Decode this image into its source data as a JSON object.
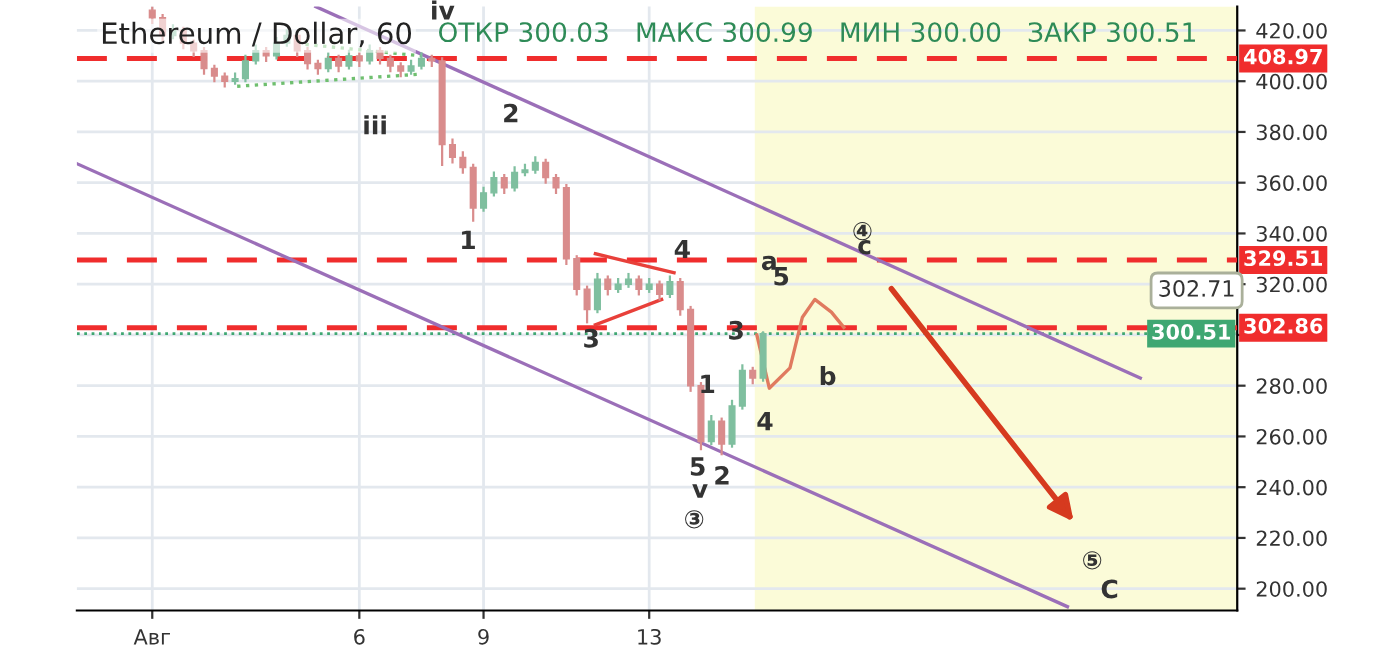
{
  "chart_data": {
    "type": "candlestick",
    "title": "Ethereum / Dollar, 60",
    "x": [
      1.0,
      1.25,
      1.5,
      1.75,
      2.0,
      2.25,
      2.5,
      2.75,
      3.0,
      3.25,
      3.5,
      3.75,
      4.0,
      4.25,
      4.5,
      4.75,
      5.0,
      5.25,
      5.5,
      5.75,
      6.0,
      6.25,
      6.5,
      6.75,
      7.0,
      7.25,
      7.5,
      7.75,
      8.0,
      8.25,
      8.5,
      8.75,
      9.0,
      9.25,
      9.5,
      9.75,
      10.0,
      10.25,
      10.5,
      10.75,
      11.0,
      11.25,
      11.5,
      11.75,
      12.0,
      12.25,
      12.5,
      12.75,
      13.0,
      13.25,
      13.5,
      13.75,
      14.0,
      14.25,
      14.5,
      14.75,
      15.0,
      15.25,
      15.5,
      15.75
    ],
    "ohlc": [
      [
        428,
        429,
        423,
        425
      ],
      [
        425,
        426,
        416,
        418
      ],
      [
        418,
        422,
        417,
        420
      ],
      [
        420,
        421,
        413,
        415
      ],
      [
        415,
        416,
        410,
        412
      ],
      [
        412,
        413,
        403,
        405
      ],
      [
        405,
        406,
        400,
        402
      ],
      [
        402,
        403,
        398,
        400
      ],
      [
        400,
        403,
        399,
        401
      ],
      [
        401,
        410,
        400,
        408
      ],
      [
        408,
        414,
        407,
        412
      ],
      [
        412,
        413,
        408,
        410
      ],
      [
        410,
        417,
        409,
        415
      ],
      [
        415,
        420,
        414,
        418
      ],
      [
        418,
        419,
        410,
        412
      ],
      [
        412,
        413,
        405,
        407
      ],
      [
        407,
        408,
        403,
        405
      ],
      [
        405,
        411,
        404,
        409
      ],
      [
        409,
        410,
        404,
        406
      ],
      [
        406,
        412,
        405,
        410
      ],
      [
        410,
        411,
        406,
        408
      ],
      [
        408,
        414,
        407,
        412
      ],
      [
        412,
        413,
        407,
        409
      ],
      [
        409,
        410,
        404,
        406
      ],
      [
        406,
        407,
        402,
        404
      ],
      [
        404,
        408,
        403,
        406
      ],
      [
        406,
        411,
        405,
        409
      ],
      [
        409,
        410,
        406,
        408
      ],
      [
        408,
        409,
        367,
        375
      ],
      [
        375,
        377,
        368,
        370
      ],
      [
        370,
        372,
        364,
        366
      ],
      [
        366,
        367,
        345,
        350
      ],
      [
        350,
        358,
        349,
        356
      ],
      [
        356,
        364,
        355,
        362
      ],
      [
        362,
        363,
        356,
        358
      ],
      [
        358,
        366,
        357,
        364
      ],
      [
        364,
        367,
        363,
        365
      ],
      [
        365,
        370,
        364,
        368
      ],
      [
        368,
        369,
        360,
        362
      ],
      [
        362,
        363,
        356,
        358
      ],
      [
        358,
        359,
        328,
        330
      ],
      [
        330,
        331,
        316,
        318
      ],
      [
        318,
        319,
        305,
        310
      ],
      [
        310,
        324,
        309,
        322
      ],
      [
        322,
        323,
        316,
        318
      ],
      [
        318,
        322,
        317,
        320
      ],
      [
        320,
        324,
        319,
        322
      ],
      [
        322,
        323,
        316,
        318
      ],
      [
        318,
        322,
        317,
        320
      ],
      [
        320,
        321,
        314,
        316
      ],
      [
        316,
        323,
        315,
        321
      ],
      [
        321,
        322,
        308,
        310
      ],
      [
        310,
        311,
        278,
        280
      ],
      [
        280,
        281,
        255,
        258
      ],
      [
        258,
        268,
        257,
        266
      ],
      [
        266,
        267,
        253,
        257
      ],
      [
        257,
        274,
        256,
        272
      ],
      [
        272,
        288,
        271,
        286
      ],
      [
        286,
        287,
        281,
        283
      ],
      [
        283,
        301,
        282,
        300.51
      ]
    ],
    "colors": [
      "#d98c8c",
      "#d98c8c",
      "#7fbf9f",
      "#d98c8c",
      "#d98c8c",
      "#d98c8c",
      "#d98c8c",
      "#d98c8c",
      "#7fbf9f",
      "#7fbf9f",
      "#7fbf9f",
      "#d98c8c",
      "#7fbf9f",
      "#7fbf9f",
      "#d98c8c",
      "#d98c8c",
      "#d98c8c",
      "#7fbf9f",
      "#d98c8c",
      "#7fbf9f",
      "#d98c8c",
      "#7fbf9f",
      "#d98c8c",
      "#d98c8c",
      "#d98c8c",
      "#7fbf9f",
      "#7fbf9f",
      "#d98c8c",
      "#d98c8c",
      "#d98c8c",
      "#d98c8c",
      "#d98c8c",
      "#7fbf9f",
      "#7fbf9f",
      "#d98c8c",
      "#7fbf9f",
      "#7fbf9f",
      "#7fbf9f",
      "#d98c8c",
      "#d98c8c",
      "#d98c8c",
      "#d98c8c",
      "#d98c8c",
      "#7fbf9f",
      "#d98c8c",
      "#7fbf9f",
      "#7fbf9f",
      "#d98c8c",
      "#7fbf9f",
      "#d98c8c",
      "#7fbf9f",
      "#d98c8c",
      "#d98c8c",
      "#d98c8c",
      "#7fbf9f",
      "#d98c8c",
      "#7fbf9f",
      "#7fbf9f",
      "#d98c8c",
      "#7fbf9f"
    ],
    "series": [
      {
        "type": "line",
        "color": "#9b6fb8",
        "line_style": "solid",
        "x": [
          4.95,
          24.86
        ],
        "values": [
          429.4,
          283
        ]
      },
      {
        "type": "line",
        "color": "#9b6fb8",
        "line_style": "solid",
        "x": [
          -0.82,
          23.1
        ],
        "values": [
          367.5,
          192.9
        ]
      },
      {
        "type": "line",
        "color": "#6fbf6f",
        "line_style": "dotted",
        "x": [
          3.05,
          7.5
        ],
        "values": [
          398,
          402.8
        ]
      },
      {
        "type": "line",
        "color": "#6fbf6f",
        "line_style": "dotted",
        "x": [
          4.7,
          7.5
        ],
        "values": [
          414.5,
          410
        ]
      },
      {
        "type": "line",
        "color": "#e8403a",
        "line_style": "solid",
        "x": [
          11.7,
          13.6
        ],
        "values": [
          332,
          324.5
        ]
      },
      {
        "type": "line",
        "color": "#e8403a",
        "line_style": "solid",
        "x": [
          11.7,
          13.3
        ],
        "values": [
          304,
          314
        ]
      },
      {
        "type": "line",
        "color": "#e07a5f",
        "line_style": "solid",
        "x": [
          15.6,
          15.9,
          16.4,
          16.7,
          17.0,
          17.4,
          17.7
        ],
        "values": [
          300,
          279,
          287,
          307,
          314,
          309,
          303
        ]
      }
    ],
    "xlim": [
      -0.82,
      27.2
    ],
    "ylim": [
      191.4,
      429.4
    ],
    "xticks": [
      {
        "value": 1,
        "label": "Авг"
      },
      6,
      9,
      13
    ],
    "yticks": [
      {
        "value": 200,
        "label": "200.00"
      },
      {
        "value": 220,
        "label": "220.00"
      },
      {
        "value": 240,
        "label": "240.00"
      },
      {
        "value": 260,
        "label": "260.00"
      },
      {
        "value": 280,
        "label": "280.00"
      },
      {
        "value": 300,
        "label": null
      },
      {
        "value": 320,
        "label": "320.00"
      },
      {
        "value": 340,
        "label": "340.00"
      },
      {
        "value": 360,
        "label": "360.00"
      },
      {
        "value": 380,
        "label": "380.00"
      },
      {
        "value": 400,
        "label": "400.00"
      },
      {
        "value": 420,
        "label": "420.00"
      }
    ],
    "ref_lines": [
      {
        "axis": "y",
        "value": 408.97,
        "label": "408.97",
        "color": "#f02d2d",
        "line_style": "dashed"
      },
      {
        "axis": "y",
        "value": 329.51,
        "label": "329.51",
        "color": "#f02d2d",
        "line_style": "dashed"
      },
      {
        "axis": "y",
        "value": 302.86,
        "label": "302.86",
        "color": "#f02d2d",
        "line_style": "dashed"
      },
      {
        "axis": "y",
        "value": 300.51,
        "label": "300.51",
        "color": "#3fa772",
        "line_style": "dotted"
      }
    ],
    "bands": [
      {
        "axis": "x",
        "from": 15.55,
        "to": 27.2,
        "label": null,
        "color": "#fbfbd8"
      }
    ],
    "subtitle": "ОТКР 300.03   МАКС 300.99   МИН 300.00   ЗАКР 300.51",
    "annotations": [
      "iii",
      "iv",
      "2",
      "1",
      "5",
      "b",
      "4",
      "5",
      "2",
      "v",
      "③",
      "④",
      "⑤",
      "C",
      "302.71",
      {
        "text": "4",
        "x": 13.8,
        "y": 333
      },
      {
        "text": "3",
        "x": 11.6,
        "y": 297.8
      },
      {
        "text": "a",
        "x": 15.9,
        "y": 328.4
      },
      {
        "text": "3",
        "x": 15.1,
        "y": 301
      },
      {
        "text": "1",
        "x": 14.4,
        "y": 279.8
      },
      {
        "text": "c",
        "x": 18.2,
        "y": 334.6
      }
    ],
    "grid": true
  }
}
